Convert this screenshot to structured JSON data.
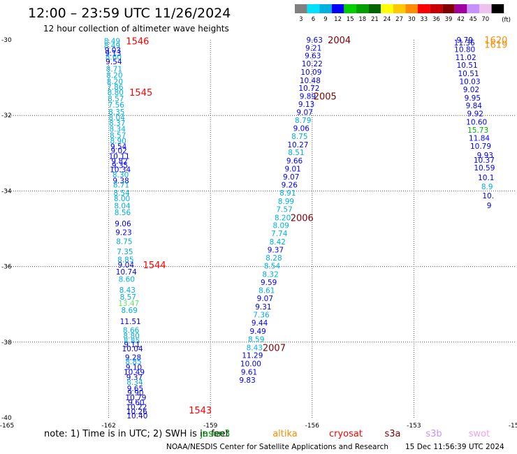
{
  "header": {
    "title": "12:00 – 23:59 UTC 11/26/2024",
    "subtitle": "12 hour collection of altimeter wave heights"
  },
  "color_scale": {
    "unit": "(ft)",
    "levels": [
      {
        "label": "3",
        "color": "#808080"
      },
      {
        "label": "6",
        "color": "#00e0ff"
      },
      {
        "label": "9",
        "color": "#00b0e0"
      },
      {
        "label": "12",
        "color": "#0000ff"
      },
      {
        "label": "15",
        "color": "#00d000"
      },
      {
        "label": "18",
        "color": "#00a000"
      },
      {
        "label": "21",
        "color": "#006400"
      },
      {
        "label": "24",
        "color": "#ffff00"
      },
      {
        "label": "27",
        "color": "#ffc800"
      },
      {
        "label": "30",
        "color": "#ff8c00"
      },
      {
        "label": "33",
        "color": "#ff0000"
      },
      {
        "label": "36",
        "color": "#c80000"
      },
      {
        "label": "39",
        "color": "#800000"
      },
      {
        "label": "42",
        "color": "#a000a0"
      },
      {
        "label": "45",
        "color": "#c890ff"
      },
      {
        "label": "70",
        "color": "#f0c0f0"
      },
      {
        "label": "",
        "color": "#000000"
      }
    ]
  },
  "chart_data": {
    "type": "scatter",
    "xlim": [
      -165,
      -150
    ],
    "ylim": [
      -40,
      -30
    ],
    "x_ticks": [
      "-165",
      "-162",
      "-159",
      "-156",
      "-153",
      "-150"
    ],
    "y_ticks": [
      "-30",
      "-32",
      "-34",
      "-36",
      "-38",
      "-40"
    ],
    "grid": true,
    "points": [
      {
        "x": -161.9,
        "y": -30.03,
        "v": "8.49",
        "c": "#00b0e0"
      },
      {
        "x": -161.9,
        "y": -30.15,
        "v": "8.49",
        "c": "#00b0e0"
      },
      {
        "x": -161.88,
        "y": -30.27,
        "v": "9.03",
        "c": "#0000ff"
      },
      {
        "x": -161.87,
        "y": -30.35,
        "v": "9.13",
        "c": "#0000ff"
      },
      {
        "x": -161.86,
        "y": -30.45,
        "v": "8.60",
        "c": "#00b0e0"
      },
      {
        "x": -161.85,
        "y": -30.57,
        "v": "9.54",
        "c": "#0000ff"
      },
      {
        "x": -161.84,
        "y": -30.77,
        "v": "8.71",
        "c": "#00b0e0"
      },
      {
        "x": -161.83,
        "y": -30.93,
        "v": "8.20",
        "c": "#00b0e0"
      },
      {
        "x": -161.82,
        "y": -31.1,
        "v": "8.20",
        "c": "#00b0e0"
      },
      {
        "x": -161.81,
        "y": -31.25,
        "v": "7.86",
        "c": "#00b0e0"
      },
      {
        "x": -161.8,
        "y": -31.39,
        "v": "8.80",
        "c": "#00b0e0"
      },
      {
        "x": -161.79,
        "y": -31.55,
        "v": "8.57",
        "c": "#00b0e0"
      },
      {
        "x": -161.78,
        "y": -31.72,
        "v": "7.56",
        "c": "#00b0e0"
      },
      {
        "x": -161.77,
        "y": -31.9,
        "v": "8.35",
        "c": "#00b0e0"
      },
      {
        "x": -161.76,
        "y": -32.05,
        "v": "8.04",
        "c": "#00b0e0"
      },
      {
        "x": -161.75,
        "y": -32.2,
        "v": "8.37",
        "c": "#00b0e0"
      },
      {
        "x": -161.74,
        "y": -32.36,
        "v": "8.34",
        "c": "#00b0e0"
      },
      {
        "x": -161.73,
        "y": -32.52,
        "v": "8.57",
        "c": "#00b0e0"
      },
      {
        "x": -161.72,
        "y": -32.67,
        "v": "8.90",
        "c": "#00b0e0"
      },
      {
        "x": -161.71,
        "y": -32.82,
        "v": "9.54",
        "c": "#0000ff"
      },
      {
        "x": -161.7,
        "y": -32.93,
        "v": "9.02",
        "c": "#0000ff"
      },
      {
        "x": -161.69,
        "y": -33.08,
        "v": "10.11",
        "c": "#0000ff"
      },
      {
        "x": -161.68,
        "y": -33.21,
        "v": "9.82",
        "c": "#0000ff"
      },
      {
        "x": -161.67,
        "y": -33.32,
        "v": "9.35",
        "c": "#0000ff"
      },
      {
        "x": -161.66,
        "y": -33.43,
        "v": "10.34",
        "c": "#0000ff"
      },
      {
        "x": -161.65,
        "y": -33.57,
        "v": "8.30",
        "c": "#00b0e0"
      },
      {
        "x": -161.64,
        "y": -33.72,
        "v": "9.38",
        "c": "#0000ff"
      },
      {
        "x": -161.63,
        "y": -33.84,
        "v": "8.71",
        "c": "#00b0e0"
      },
      {
        "x": -161.62,
        "y": -34.05,
        "v": "8.54",
        "c": "#00b0e0"
      },
      {
        "x": -161.61,
        "y": -34.2,
        "v": "8.00",
        "c": "#00b0e0"
      },
      {
        "x": -161.6,
        "y": -34.39,
        "v": "8.04",
        "c": "#00b0e0"
      },
      {
        "x": -161.59,
        "y": -34.57,
        "v": "8.56",
        "c": "#00b0e0"
      },
      {
        "x": -161.58,
        "y": -34.86,
        "v": "9.06",
        "c": "#0000ff"
      },
      {
        "x": -161.56,
        "y": -35.09,
        "v": "9.23",
        "c": "#0000ff"
      },
      {
        "x": -161.54,
        "y": -35.33,
        "v": "8.75",
        "c": "#00b0e0"
      },
      {
        "x": -161.52,
        "y": -35.6,
        "v": "7.35",
        "c": "#00b0e0"
      },
      {
        "x": -161.5,
        "y": -35.81,
        "v": "8.85",
        "c": "#00b0e0"
      },
      {
        "x": -161.49,
        "y": -35.95,
        "v": "9.04",
        "c": "#0000ff"
      },
      {
        "x": -161.48,
        "y": -36.14,
        "v": "10.74",
        "c": "#0000ff"
      },
      {
        "x": -161.47,
        "y": -36.33,
        "v": "8.60",
        "c": "#00b0e0"
      },
      {
        "x": -161.45,
        "y": -36.62,
        "v": "8.43",
        "c": "#00b0e0"
      },
      {
        "x": -161.43,
        "y": -36.8,
        "v": "8.57",
        "c": "#00b0e0"
      },
      {
        "x": -161.41,
        "y": -36.97,
        "v": "13.47",
        "c": "#60e860"
      },
      {
        "x": -161.39,
        "y": -37.15,
        "v": "8.69",
        "c": "#00b0e0"
      },
      {
        "x": -161.36,
        "y": -37.45,
        "v": "11.51",
        "c": "#0000ff"
      },
      {
        "x": -161.34,
        "y": -37.68,
        "v": "8.66",
        "c": "#00b0e0"
      },
      {
        "x": -161.33,
        "y": -37.83,
        "v": "8.80",
        "c": "#00b0e0"
      },
      {
        "x": -161.32,
        "y": -37.96,
        "v": "8.85",
        "c": "#00b0e0"
      },
      {
        "x": -161.31,
        "y": -38.06,
        "v": "9.11",
        "c": "#0000ff"
      },
      {
        "x": -161.3,
        "y": -38.17,
        "v": "10.04",
        "c": "#0000ff"
      },
      {
        "x": -161.28,
        "y": -38.4,
        "v": "9.28",
        "c": "#0000ff"
      },
      {
        "x": -161.27,
        "y": -38.51,
        "v": "8.85",
        "c": "#00b0e0"
      },
      {
        "x": -161.26,
        "y": -38.66,
        "v": "9.10",
        "c": "#0000ff"
      },
      {
        "x": -161.25,
        "y": -38.79,
        "v": "10.49",
        "c": "#0000ff"
      },
      {
        "x": -161.24,
        "y": -38.93,
        "v": "9.37",
        "c": "#0000ff"
      },
      {
        "x": -161.23,
        "y": -39.06,
        "v": "8.34",
        "c": "#00b0e0"
      },
      {
        "x": -161.22,
        "y": -39.22,
        "v": "9.65",
        "c": "#0000ff"
      },
      {
        "x": -161.21,
        "y": -39.33,
        "v": "9.90",
        "c": "#0000ff"
      },
      {
        "x": -161.2,
        "y": -39.46,
        "v": "10.79",
        "c": "#0000ff"
      },
      {
        "x": -161.19,
        "y": -39.59,
        "v": "9.60",
        "c": "#0000ff"
      },
      {
        "x": -161.18,
        "y": -39.71,
        "v": "10.22",
        "c": "#0000ff"
      },
      {
        "x": -161.17,
        "y": -39.83,
        "v": "10.26",
        "c": "#0000ff"
      },
      {
        "x": -161.16,
        "y": -39.94,
        "v": "10.40",
        "c": "#0000ff"
      },
      {
        "x": -155.93,
        "y": -30.0,
        "v": "9.63",
        "c": "#0000ff"
      },
      {
        "x": -155.96,
        "y": -30.21,
        "v": "9.21",
        "c": "#0000ff"
      },
      {
        "x": -155.98,
        "y": -30.42,
        "v": "9.63",
        "c": "#0000ff"
      },
      {
        "x": -156.0,
        "y": -30.63,
        "v": "10.22",
        "c": "#0000ff"
      },
      {
        "x": -156.03,
        "y": -30.85,
        "v": "10.09",
        "c": "#0000ff"
      },
      {
        "x": -156.06,
        "y": -31.07,
        "v": "10.48",
        "c": "#0000ff"
      },
      {
        "x": -156.09,
        "y": -31.28,
        "v": "10.72",
        "c": "#0000ff"
      },
      {
        "x": -156.13,
        "y": -31.49,
        "v": "9.89",
        "c": "#0000ff"
      },
      {
        "x": -156.17,
        "y": -31.7,
        "v": "9.13",
        "c": "#0000ff"
      },
      {
        "x": -156.22,
        "y": -31.91,
        "v": "9.07",
        "c": "#0000ff"
      },
      {
        "x": -156.27,
        "y": -32.13,
        "v": "8.79",
        "c": "#00b0e0"
      },
      {
        "x": -156.32,
        "y": -32.34,
        "v": "9.06",
        "c": "#0000ff"
      },
      {
        "x": -156.37,
        "y": -32.55,
        "v": "8.75",
        "c": "#00b0e0"
      },
      {
        "x": -156.42,
        "y": -32.77,
        "v": "10.27",
        "c": "#0000ff"
      },
      {
        "x": -156.47,
        "y": -32.98,
        "v": "8.51",
        "c": "#00b0e0"
      },
      {
        "x": -156.52,
        "y": -33.2,
        "v": "9.66",
        "c": "#0000ff"
      },
      {
        "x": -156.57,
        "y": -33.41,
        "v": "9.01",
        "c": "#0000ff"
      },
      {
        "x": -156.62,
        "y": -33.62,
        "v": "9.07",
        "c": "#0000ff"
      },
      {
        "x": -156.67,
        "y": -33.84,
        "v": "9.26",
        "c": "#0000ff"
      },
      {
        "x": -156.72,
        "y": -34.05,
        "v": "8.91",
        "c": "#00b0e0"
      },
      {
        "x": -156.77,
        "y": -34.27,
        "v": "8.99",
        "c": "#00b0e0"
      },
      {
        "x": -156.82,
        "y": -34.48,
        "v": "7.57",
        "c": "#00b0e0"
      },
      {
        "x": -156.87,
        "y": -34.7,
        "v": "8.20",
        "c": "#00b0e0"
      },
      {
        "x": -156.92,
        "y": -34.91,
        "v": "8.09",
        "c": "#00b0e0"
      },
      {
        "x": -156.97,
        "y": -35.12,
        "v": "7.74",
        "c": "#00b0e0"
      },
      {
        "x": -157.02,
        "y": -35.34,
        "v": "8.42",
        "c": "#00b0e0"
      },
      {
        "x": -157.08,
        "y": -35.55,
        "v": "9.37",
        "c": "#0000ff"
      },
      {
        "x": -157.13,
        "y": -35.77,
        "v": "8.28",
        "c": "#00b0e0"
      },
      {
        "x": -157.18,
        "y": -35.98,
        "v": "8.54",
        "c": "#00b0e0"
      },
      {
        "x": -157.23,
        "y": -36.2,
        "v": "8.32",
        "c": "#00b0e0"
      },
      {
        "x": -157.28,
        "y": -36.41,
        "v": "9.59",
        "c": "#0000ff"
      },
      {
        "x": -157.34,
        "y": -36.63,
        "v": "8.61",
        "c": "#00b0e0"
      },
      {
        "x": -157.39,
        "y": -36.84,
        "v": "9.07",
        "c": "#0000ff"
      },
      {
        "x": -157.44,
        "y": -37.06,
        "v": "9.31",
        "c": "#0000ff"
      },
      {
        "x": -157.5,
        "y": -37.27,
        "v": "7.36",
        "c": "#00b0e0"
      },
      {
        "x": -157.55,
        "y": -37.49,
        "v": "9.44",
        "c": "#0000ff"
      },
      {
        "x": -157.6,
        "y": -37.71,
        "v": "9.49",
        "c": "#0000ff"
      },
      {
        "x": -157.65,
        "y": -37.92,
        "v": "8.59",
        "c": "#00b0e0"
      },
      {
        "x": -157.7,
        "y": -38.14,
        "v": "8.43",
        "c": "#00b0e0"
      },
      {
        "x": -157.76,
        "y": -38.35,
        "v": "11.29",
        "c": "#0000ff"
      },
      {
        "x": -157.81,
        "y": -38.57,
        "v": "10.00",
        "c": "#0000ff"
      },
      {
        "x": -157.86,
        "y": -38.79,
        "v": "9.61",
        "c": "#0000ff"
      },
      {
        "x": -157.91,
        "y": -39.0,
        "v": "9.83",
        "c": "#0000ff"
      },
      {
        "x": -151.5,
        "y": -30.0,
        "v": "9.79",
        "c": "#0000ff"
      },
      {
        "x": -151.51,
        "y": -30.07,
        "v": "11.36",
        "c": "#0000ff"
      },
      {
        "x": -151.5,
        "y": -30.25,
        "v": "10.80",
        "c": "#0000ff"
      },
      {
        "x": -151.47,
        "y": -30.46,
        "v": "11.02",
        "c": "#0000ff"
      },
      {
        "x": -151.43,
        "y": -30.67,
        "v": "10.51",
        "c": "#0000ff"
      },
      {
        "x": -151.39,
        "y": -30.89,
        "v": "10.51",
        "c": "#0000ff"
      },
      {
        "x": -151.35,
        "y": -31.1,
        "v": "10.03",
        "c": "#0000ff"
      },
      {
        "x": -151.31,
        "y": -31.31,
        "v": "9.02",
        "c": "#0000ff"
      },
      {
        "x": -151.27,
        "y": -31.53,
        "v": "9.95",
        "c": "#0000ff"
      },
      {
        "x": -151.23,
        "y": -31.74,
        "v": "9.84",
        "c": "#0000ff"
      },
      {
        "x": -151.19,
        "y": -31.95,
        "v": "9.92",
        "c": "#0000ff"
      },
      {
        "x": -151.15,
        "y": -32.17,
        "v": "10.60",
        "c": "#0000ff"
      },
      {
        "x": -151.11,
        "y": -32.38,
        "v": "15.73",
        "c": "#00b000"
      },
      {
        "x": -151.07,
        "y": -32.6,
        "v": "11.84",
        "c": "#0000ff"
      },
      {
        "x": -151.03,
        "y": -32.81,
        "v": "10.79",
        "c": "#0000ff"
      },
      {
        "x": -150.9,
        "y": -33.05,
        "v": "9.93",
        "c": "#0000ff"
      },
      {
        "x": -150.93,
        "y": -33.18,
        "v": "10.37",
        "c": "#0000ff"
      },
      {
        "x": -150.92,
        "y": -33.38,
        "v": "10.59",
        "c": "#0000ff"
      },
      {
        "x": -150.87,
        "y": -33.64,
        "v": "10.1",
        "c": "#0000ff"
      },
      {
        "x": -150.84,
        "y": -33.88,
        "v": "8.9",
        "c": "#00b0e0"
      },
      {
        "x": -150.81,
        "y": -34.12,
        "v": "10.",
        "c": "#0000ff"
      },
      {
        "x": -150.78,
        "y": -34.38,
        "v": "9",
        "c": "#0000ff"
      }
    ],
    "passes": [
      {
        "x": -161.15,
        "y": -30.03,
        "label": "1546",
        "c": "#ff0000"
      },
      {
        "x": -161.05,
        "y": -31.39,
        "label": "1545",
        "c": "#ff0000"
      },
      {
        "x": -160.65,
        "y": -35.95,
        "label": "1544",
        "c": "#ff0000"
      },
      {
        "x": -159.3,
        "y": -39.8,
        "label": "1543",
        "c": "#ff0000"
      },
      {
        "x": -155.2,
        "y": -30.0,
        "label": "2004",
        "c": "#800000"
      },
      {
        "x": -155.62,
        "y": -31.49,
        "label": "2005",
        "c": "#800000"
      },
      {
        "x": -156.3,
        "y": -34.7,
        "label": "2006",
        "c": "#800000"
      },
      {
        "x": -157.12,
        "y": -38.14,
        "label": "2007",
        "c": "#800000"
      },
      {
        "x": -150.58,
        "y": -30.0,
        "label": "1620",
        "c": "#ff8c00"
      },
      {
        "x": -150.58,
        "y": -30.12,
        "label": "1619",
        "c": "#ff8c00"
      }
    ]
  },
  "note": {
    "text": "note: 1) Time is in UTC; 2) SWH is in feet"
  },
  "satellites": [
    {
      "name": "jason3",
      "color": "#00a000"
    },
    {
      "name": "altika",
      "color": "#ff8c00"
    },
    {
      "name": "cryosat",
      "color": "#ff0000"
    },
    {
      "name": "s3a",
      "color": "#800000"
    },
    {
      "name": "s3b",
      "color": "#c890ff"
    },
    {
      "name": "swot",
      "color": "#f0a0f0"
    }
  ],
  "footer": {
    "credit": "NOAA/NESDIS Center for Satellite Applications and Research",
    "timestamp": "15 Dec 11:56:39 UTC 2024"
  }
}
